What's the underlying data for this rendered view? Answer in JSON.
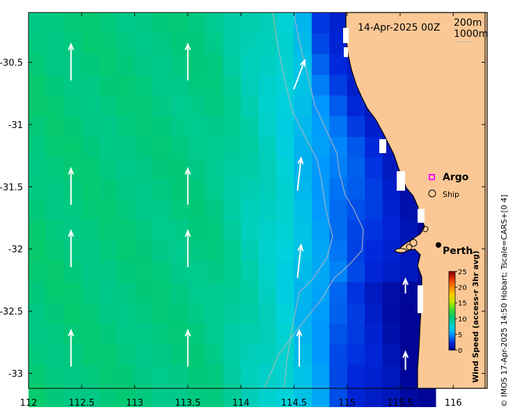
{
  "map": {
    "title": "14-Apr-2025 00Z",
    "xlim": [
      112,
      116.3
    ],
    "ylim": [
      -33.12,
      -30.1
    ],
    "x_ticks": [
      112,
      112.5,
      113,
      113.5,
      114,
      114.5,
      115,
      115.5,
      116
    ],
    "x_tick_labels": [
      "112",
      "112.5",
      "113",
      "113.5",
      "114",
      "114.5",
      "115",
      "115.5",
      "116"
    ],
    "y_ticks": [
      -30.5,
      -31,
      -31.5,
      -32,
      -32.5,
      -33
    ],
    "y_tick_labels": [
      "-30.5",
      "-31",
      "-31.5",
      "-32",
      "-32.5",
      "-33"
    ],
    "isobath_200_label": "200m",
    "isobath_1000_label": "1000m",
    "land_color": "#fbc895",
    "contour_color": "#b9b9b9"
  },
  "legend": {
    "argo_label": "Argo",
    "ship_label": "Ship",
    "argo_color": "#ff00ff"
  },
  "places": [
    {
      "name": "Perth",
      "lon": 115.86,
      "lat": -31.95
    }
  ],
  "colorbar": {
    "title": "Wind Speed (access-r 3hr avg)",
    "ticks": [
      "0",
      "5",
      "10",
      "15",
      "20",
      "25"
    ],
    "tick_values": [
      0,
      5,
      10,
      15,
      20,
      25
    ],
    "range": [
      0,
      25
    ]
  },
  "credit": "© IMOS 17-Apr-2025 14:50 Hobart; Tscale=CARS+[0 4]",
  "chart_data": {
    "type": "heatmap",
    "title": "14-Apr-2025 00Z",
    "variable": "Wind Speed (access-r 3hr avg)",
    "units_range": [
      0,
      25
    ],
    "x_range": [
      112,
      116.3
    ],
    "y_range": [
      -33.12,
      -30.1
    ],
    "field_description_values": [
      {
        "lon": 112.5,
        "lat": -31.0,
        "value": 10.5
      },
      {
        "lon": 113.5,
        "lat": -31.5,
        "value": 10.0
      },
      {
        "lon": 114.5,
        "lat": -31.5,
        "value": 6.5
      },
      {
        "lon": 115.0,
        "lat": -30.5,
        "value": 2.5
      },
      {
        "lon": 115.5,
        "lat": -32.5,
        "value": 1.0
      }
    ],
    "vectors": [
      {
        "lon": 112.4,
        "lat": -30.5,
        "u": 0.0,
        "v": 1.0
      },
      {
        "lon": 112.4,
        "lat": -31.5,
        "u": 0.0,
        "v": 1.0
      },
      {
        "lon": 112.4,
        "lat": -32.0,
        "u": 0.0,
        "v": 1.0
      },
      {
        "lon": 112.4,
        "lat": -32.8,
        "u": 0.0,
        "v": 1.0
      },
      {
        "lon": 113.5,
        "lat": -30.5,
        "u": 0.0,
        "v": 1.0
      },
      {
        "lon": 113.5,
        "lat": -31.5,
        "u": 0.0,
        "v": 1.0
      },
      {
        "lon": 113.5,
        "lat": -32.0,
        "u": 0.0,
        "v": 1.0
      },
      {
        "lon": 113.5,
        "lat": -32.8,
        "u": 0.0,
        "v": 1.0
      },
      {
        "lon": 114.55,
        "lat": -30.6,
        "u": 0.3,
        "v": 0.8
      },
      {
        "lon": 114.55,
        "lat": -31.4,
        "u": 0.1,
        "v": 0.9
      },
      {
        "lon": 114.55,
        "lat": -32.1,
        "u": 0.1,
        "v": 0.9
      },
      {
        "lon": 114.55,
        "lat": -32.8,
        "u": 0.0,
        "v": 1.0
      },
      {
        "lon": 115.55,
        "lat": -32.3,
        "u": 0.0,
        "v": 0.4
      },
      {
        "lon": 115.55,
        "lat": -32.9,
        "u": 0.0,
        "v": 0.5
      }
    ]
  }
}
